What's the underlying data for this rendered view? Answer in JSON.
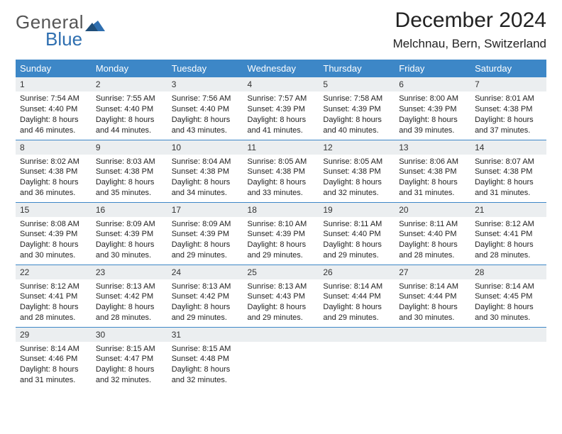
{
  "brand": {
    "line1": "General",
    "line2": "Blue"
  },
  "colors": {
    "header_bg": "#3d87c7",
    "header_text": "#ffffff",
    "daynum_bg": "#ebeef0",
    "row_border": "#3d87c7",
    "brand_gray": "#555555",
    "brand_blue": "#2f6fb0",
    "page_bg": "#ffffff"
  },
  "title": "December 2024",
  "location": "Melchnau, Bern, Switzerland",
  "weekdays": [
    "Sunday",
    "Monday",
    "Tuesday",
    "Wednesday",
    "Thursday",
    "Friday",
    "Saturday"
  ],
  "weeks": [
    [
      {
        "n": "1",
        "sunrise": "7:54 AM",
        "sunset": "4:40 PM",
        "dl": "8 hours and 46 minutes."
      },
      {
        "n": "2",
        "sunrise": "7:55 AM",
        "sunset": "4:40 PM",
        "dl": "8 hours and 44 minutes."
      },
      {
        "n": "3",
        "sunrise": "7:56 AM",
        "sunset": "4:40 PM",
        "dl": "8 hours and 43 minutes."
      },
      {
        "n": "4",
        "sunrise": "7:57 AM",
        "sunset": "4:39 PM",
        "dl": "8 hours and 41 minutes."
      },
      {
        "n": "5",
        "sunrise": "7:58 AM",
        "sunset": "4:39 PM",
        "dl": "8 hours and 40 minutes."
      },
      {
        "n": "6",
        "sunrise": "8:00 AM",
        "sunset": "4:39 PM",
        "dl": "8 hours and 39 minutes."
      },
      {
        "n": "7",
        "sunrise": "8:01 AM",
        "sunset": "4:38 PM",
        "dl": "8 hours and 37 minutes."
      }
    ],
    [
      {
        "n": "8",
        "sunrise": "8:02 AM",
        "sunset": "4:38 PM",
        "dl": "8 hours and 36 minutes."
      },
      {
        "n": "9",
        "sunrise": "8:03 AM",
        "sunset": "4:38 PM",
        "dl": "8 hours and 35 minutes."
      },
      {
        "n": "10",
        "sunrise": "8:04 AM",
        "sunset": "4:38 PM",
        "dl": "8 hours and 34 minutes."
      },
      {
        "n": "11",
        "sunrise": "8:05 AM",
        "sunset": "4:38 PM",
        "dl": "8 hours and 33 minutes."
      },
      {
        "n": "12",
        "sunrise": "8:05 AM",
        "sunset": "4:38 PM",
        "dl": "8 hours and 32 minutes."
      },
      {
        "n": "13",
        "sunrise": "8:06 AM",
        "sunset": "4:38 PM",
        "dl": "8 hours and 31 minutes."
      },
      {
        "n": "14",
        "sunrise": "8:07 AM",
        "sunset": "4:38 PM",
        "dl": "8 hours and 31 minutes."
      }
    ],
    [
      {
        "n": "15",
        "sunrise": "8:08 AM",
        "sunset": "4:39 PM",
        "dl": "8 hours and 30 minutes."
      },
      {
        "n": "16",
        "sunrise": "8:09 AM",
        "sunset": "4:39 PM",
        "dl": "8 hours and 30 minutes."
      },
      {
        "n": "17",
        "sunrise": "8:09 AM",
        "sunset": "4:39 PM",
        "dl": "8 hours and 29 minutes."
      },
      {
        "n": "18",
        "sunrise": "8:10 AM",
        "sunset": "4:39 PM",
        "dl": "8 hours and 29 minutes."
      },
      {
        "n": "19",
        "sunrise": "8:11 AM",
        "sunset": "4:40 PM",
        "dl": "8 hours and 29 minutes."
      },
      {
        "n": "20",
        "sunrise": "8:11 AM",
        "sunset": "4:40 PM",
        "dl": "8 hours and 28 minutes."
      },
      {
        "n": "21",
        "sunrise": "8:12 AM",
        "sunset": "4:41 PM",
        "dl": "8 hours and 28 minutes."
      }
    ],
    [
      {
        "n": "22",
        "sunrise": "8:12 AM",
        "sunset": "4:41 PM",
        "dl": "8 hours and 28 minutes."
      },
      {
        "n": "23",
        "sunrise": "8:13 AM",
        "sunset": "4:42 PM",
        "dl": "8 hours and 28 minutes."
      },
      {
        "n": "24",
        "sunrise": "8:13 AM",
        "sunset": "4:42 PM",
        "dl": "8 hours and 29 minutes."
      },
      {
        "n": "25",
        "sunrise": "8:13 AM",
        "sunset": "4:43 PM",
        "dl": "8 hours and 29 minutes."
      },
      {
        "n": "26",
        "sunrise": "8:14 AM",
        "sunset": "4:44 PM",
        "dl": "8 hours and 29 minutes."
      },
      {
        "n": "27",
        "sunrise": "8:14 AM",
        "sunset": "4:44 PM",
        "dl": "8 hours and 30 minutes."
      },
      {
        "n": "28",
        "sunrise": "8:14 AM",
        "sunset": "4:45 PM",
        "dl": "8 hours and 30 minutes."
      }
    ],
    [
      {
        "n": "29",
        "sunrise": "8:14 AM",
        "sunset": "4:46 PM",
        "dl": "8 hours and 31 minutes."
      },
      {
        "n": "30",
        "sunrise": "8:15 AM",
        "sunset": "4:47 PM",
        "dl": "8 hours and 32 minutes."
      },
      {
        "n": "31",
        "sunrise": "8:15 AM",
        "sunset": "4:48 PM",
        "dl": "8 hours and 32 minutes."
      },
      null,
      null,
      null,
      null
    ]
  ],
  "labels": {
    "sunrise": "Sunrise:",
    "sunset": "Sunset:",
    "daylight": "Daylight:"
  }
}
